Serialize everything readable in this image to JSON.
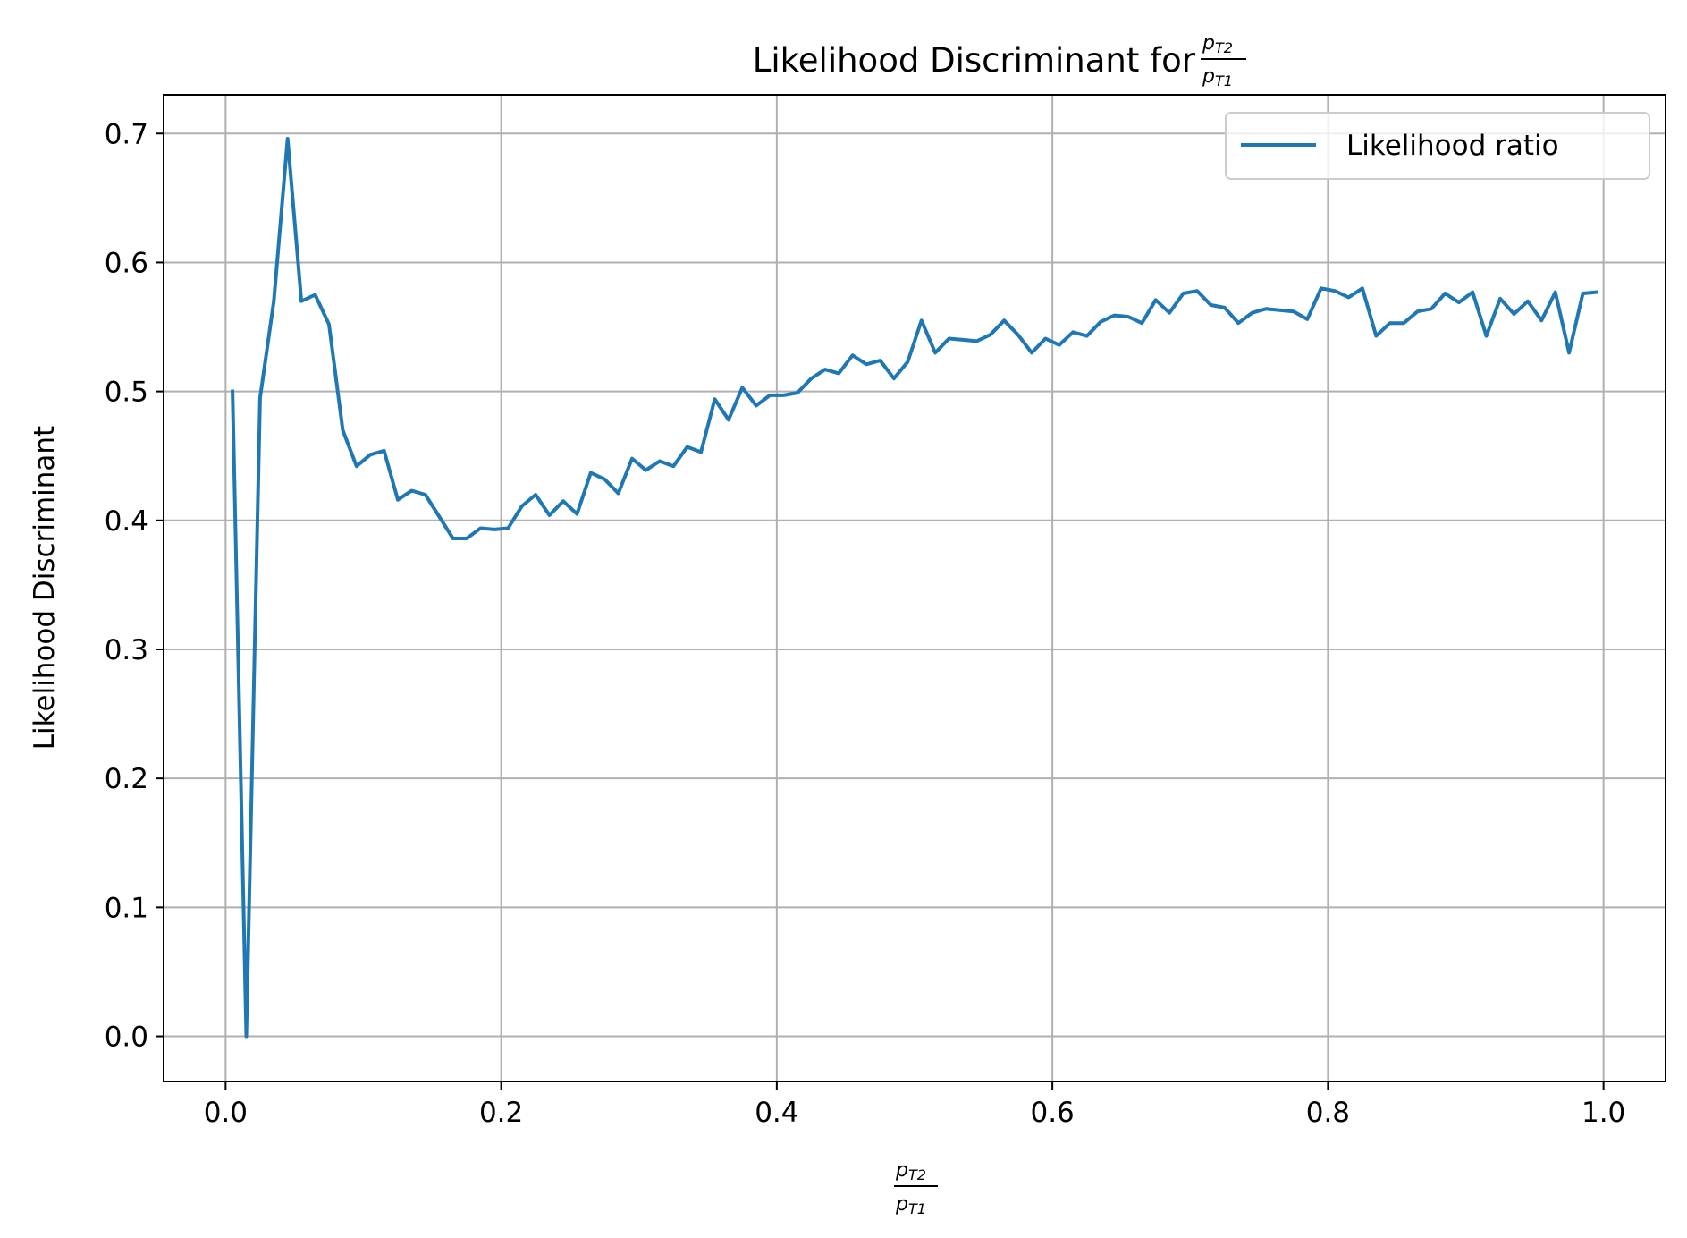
{
  "chart_data": {
    "type": "line",
    "title": "Likelihood Discriminant for",
    "title_fraction": {
      "num_base": "p",
      "num_sub": "T2",
      "den_base": "p",
      "den_sub": "T1"
    },
    "xlabel_fraction": {
      "num_base": "p",
      "num_sub": "T2",
      "den_base": "p",
      "den_sub": "T1"
    },
    "ylabel": "Likelihood Discriminant",
    "xlim": [
      -0.045,
      1.045
    ],
    "ylim": [
      -0.035,
      0.73
    ],
    "x_ticks": [
      0.0,
      0.2,
      0.4,
      0.6,
      0.8,
      1.0
    ],
    "x_tick_labels": [
      "0.0",
      "0.2",
      "0.4",
      "0.6",
      "0.8",
      "1.0"
    ],
    "y_ticks": [
      0.0,
      0.1,
      0.2,
      0.3,
      0.4,
      0.5,
      0.6,
      0.7
    ],
    "y_tick_labels": [
      "0.0",
      "0.1",
      "0.2",
      "0.3",
      "0.4",
      "0.5",
      "0.6",
      "0.7"
    ],
    "grid": true,
    "legend_position": "top-right",
    "series": [
      {
        "name": "Likelihood ratio",
        "color": "#1f77b4",
        "x": [
          0.005,
          0.015,
          0.025,
          0.035,
          0.045,
          0.055,
          0.065,
          0.075,
          0.085,
          0.095,
          0.105,
          0.115,
          0.125,
          0.135,
          0.145,
          0.155,
          0.165,
          0.175,
          0.185,
          0.195,
          0.205,
          0.215,
          0.225,
          0.235,
          0.245,
          0.255,
          0.265,
          0.275,
          0.285,
          0.295,
          0.305,
          0.315,
          0.325,
          0.335,
          0.345,
          0.355,
          0.365,
          0.375,
          0.385,
          0.395,
          0.405,
          0.415,
          0.425,
          0.435,
          0.445,
          0.455,
          0.465,
          0.475,
          0.485,
          0.495,
          0.505,
          0.515,
          0.525,
          0.535,
          0.545,
          0.555,
          0.565,
          0.575,
          0.585,
          0.595,
          0.605,
          0.615,
          0.625,
          0.635,
          0.645,
          0.655,
          0.665,
          0.675,
          0.685,
          0.695,
          0.705,
          0.715,
          0.725,
          0.735,
          0.745,
          0.755,
          0.765,
          0.775,
          0.785,
          0.795,
          0.805,
          0.815,
          0.825,
          0.835,
          0.845,
          0.855,
          0.865,
          0.875,
          0.885,
          0.895,
          0.905,
          0.915,
          0.925,
          0.935,
          0.945,
          0.955,
          0.965,
          0.975,
          0.985,
          0.995
        ],
        "y": [
          0.5,
          0.0,
          0.495,
          0.57,
          0.696,
          0.57,
          0.575,
          0.552,
          0.47,
          0.442,
          0.451,
          0.454,
          0.416,
          0.423,
          0.42,
          0.403,
          0.386,
          0.386,
          0.394,
          0.393,
          0.394,
          0.411,
          0.42,
          0.404,
          0.415,
          0.405,
          0.437,
          0.432,
          0.421,
          0.448,
          0.439,
          0.446,
          0.442,
          0.457,
          0.453,
          0.494,
          0.478,
          0.503,
          0.489,
          0.497,
          0.497,
          0.499,
          0.51,
          0.517,
          0.514,
          0.528,
          0.521,
          0.524,
          0.51,
          0.523,
          0.555,
          0.53,
          0.541,
          0.54,
          0.539,
          0.544,
          0.555,
          0.544,
          0.53,
          0.541,
          0.536,
          0.546,
          0.543,
          0.554,
          0.559,
          0.558,
          0.553,
          0.571,
          0.561,
          0.576,
          0.578,
          0.567,
          0.565,
          0.553,
          0.561,
          0.564,
          0.563,
          0.562,
          0.556,
          0.58,
          0.578,
          0.573,
          0.58,
          0.543,
          0.553,
          0.553,
          0.562,
          0.564,
          0.576,
          0.569,
          0.577,
          0.543,
          0.572,
          0.56,
          0.57,
          0.555,
          0.577,
          0.53,
          0.576,
          0.577
        ]
      }
    ]
  }
}
